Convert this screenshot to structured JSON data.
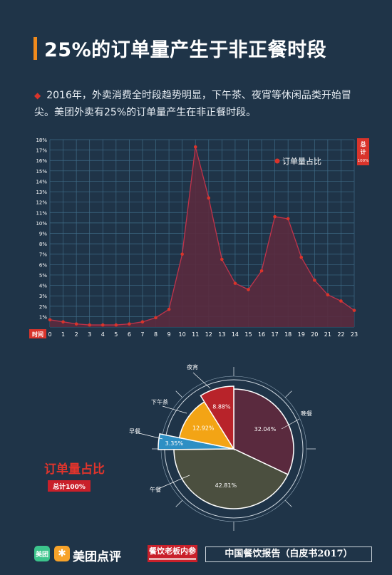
{
  "title": "25%的订单量产生于非正餐时段",
  "intro_text": "2016年，外卖消费全时段趋势明显，下午茶、夜宵等休闲品类开始冒尖。美团外卖有25%的订单量产生在非正餐时段。",
  "colors": {
    "background": "#1f3448",
    "accent_orange": "#f08a1c",
    "accent_red": "#d9342b",
    "line_fill": "#5a2a3e",
    "grid": "#3f6b86"
  },
  "chart_data": [
    {
      "type": "area",
      "legend_label": "订单量占比",
      "xlabel": "时间",
      "ylabel": "总计",
      "ylabel_sub": "100%",
      "legend_position": "top-right",
      "grid": true,
      "ylim": [
        0,
        18
      ],
      "x": [
        0,
        1,
        2,
        3,
        4,
        5,
        6,
        7,
        8,
        9,
        10,
        11,
        12,
        13,
        14,
        15,
        16,
        17,
        18,
        19,
        20,
        21,
        22,
        23
      ],
      "y_ticks": [
        "1%",
        "2%",
        "3%",
        "4%",
        "5%",
        "6%",
        "7%",
        "8%",
        "9%",
        "10%",
        "11%",
        "12%",
        "13%",
        "14%",
        "15%",
        "16%",
        "17%",
        "18%"
      ],
      "series": [
        {
          "name": "订单量占比",
          "values": [
            0.7,
            0.5,
            0.3,
            0.2,
            0.2,
            0.2,
            0.3,
            0.5,
            0.9,
            1.7,
            7.0,
            17.3,
            12.4,
            6.5,
            4.2,
            3.6,
            5.4,
            10.6,
            10.4,
            6.7,
            4.5,
            3.1,
            2.5,
            1.6
          ]
        }
      ]
    },
    {
      "type": "pie",
      "title": "订单量占比",
      "subtitle": "总计100%",
      "categories": [
        "晚餐",
        "午餐",
        "早餐",
        "下午茶",
        "夜宵"
      ],
      "values": [
        32.04,
        42.81,
        3.35,
        12.92,
        8.88
      ],
      "value_labels": [
        "32.04%",
        "42.81%",
        "3.35%",
        "12.92%",
        "8.88%"
      ],
      "colors": [
        "#5a2a3e",
        "#4b4f3f",
        "#2d8fc4",
        "#f3a415",
        "#b8232a"
      ]
    }
  ],
  "footer": {
    "brand_icon_text": "美团",
    "brand_name": "美团点评",
    "media_name": "餐饮老板内参",
    "report_name": "中国餐饮报告（白皮书2017）"
  }
}
